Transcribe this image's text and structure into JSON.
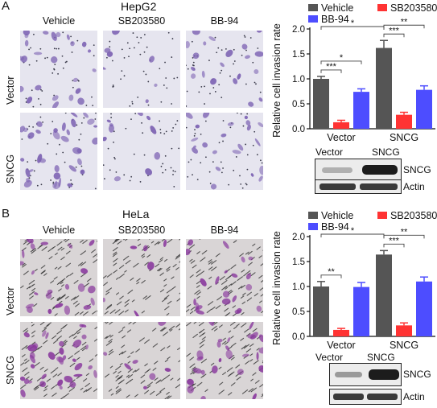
{
  "panels": [
    {
      "letter": "A",
      "cell_line": "HepG2",
      "columns": [
        "Vehicle",
        "SB203580",
        "BB-94"
      ],
      "rows": [
        "Vector",
        "SNCG"
      ],
      "stain": "#7d63b3",
      "background": "#e6e5ef",
      "blot": {
        "lanes": [
          "Vector",
          "SNCG"
        ],
        "bands": [
          "SNCG",
          "Actin"
        ]
      },
      "chart_data": {
        "type": "bar",
        "categories": [
          "Vector",
          "SNCG"
        ],
        "ylabel": "Relative cell invasion rate",
        "ylim": [
          0,
          2.0
        ],
        "yticks": [
          "0.0",
          "0.5",
          "1.0",
          "1.5",
          "2.0"
        ],
        "legend": "top",
        "series": [
          {
            "name": "Vehicle",
            "color": "#555555",
            "values": [
              1.0,
              1.62
            ],
            "errors": [
              0.05,
              0.15
            ]
          },
          {
            "name": "SB203580",
            "color": "#ff3333",
            "values": [
              0.13,
              0.28
            ],
            "errors": [
              0.04,
              0.05
            ]
          },
          {
            "name": "BB-94",
            "color": "#4d4dff",
            "values": [
              0.74,
              0.78
            ],
            "errors": [
              0.06,
              0.08
            ]
          }
        ],
        "significance": [
          {
            "label": "***",
            "from": [
              0,
              0
            ],
            "to": [
              0,
              1
            ]
          },
          {
            "label": "*",
            "from": [
              0,
              0
            ],
            "to": [
              0,
              2
            ]
          },
          {
            "label": "***",
            "from": [
              1,
              0
            ],
            "to": [
              1,
              1
            ]
          },
          {
            "label": "**",
            "from": [
              1,
              0
            ],
            "to": [
              1,
              2
            ]
          },
          {
            "label": "*",
            "from": [
              0,
              0
            ],
            "to": [
              1,
              0
            ]
          }
        ]
      }
    },
    {
      "letter": "B",
      "cell_line": "HeLa",
      "columns": [
        "Vehicle",
        "SB203580",
        "BB-94"
      ],
      "rows": [
        "Vector",
        "SNCG"
      ],
      "stain": "#8a3a9e",
      "background": "#d9d5d6",
      "blot": {
        "lanes": [
          "Vector",
          "SNCG"
        ],
        "bands": [
          "SNCG",
          "Actin"
        ]
      },
      "chart_data": {
        "type": "bar",
        "categories": [
          "Vector",
          "SNCG"
        ],
        "ylabel": "Relative cell invasion rate",
        "ylim": [
          0,
          2.0
        ],
        "yticks": [
          "0.0",
          "0.5",
          "1.0",
          "1.5",
          "2.0"
        ],
        "legend": "top",
        "series": [
          {
            "name": "Vehicle",
            "color": "#555555",
            "values": [
              1.0,
              1.64
            ],
            "errors": [
              0.1,
              0.08
            ]
          },
          {
            "name": "SB203580",
            "color": "#ff3333",
            "values": [
              0.13,
              0.22
            ],
            "errors": [
              0.03,
              0.05
            ]
          },
          {
            "name": "BB-94",
            "color": "#4d4dff",
            "values": [
              0.99,
              1.1
            ],
            "errors": [
              0.09,
              0.09
            ]
          }
        ],
        "significance": [
          {
            "label": "**",
            "from": [
              0,
              0
            ],
            "to": [
              0,
              1
            ]
          },
          {
            "label": "***",
            "from": [
              1,
              0
            ],
            "to": [
              1,
              1
            ]
          },
          {
            "label": "**",
            "from": [
              1,
              0
            ],
            "to": [
              1,
              2
            ]
          },
          {
            "label": "*",
            "from": [
              0,
              0
            ],
            "to": [
              1,
              0
            ]
          }
        ]
      }
    }
  ]
}
